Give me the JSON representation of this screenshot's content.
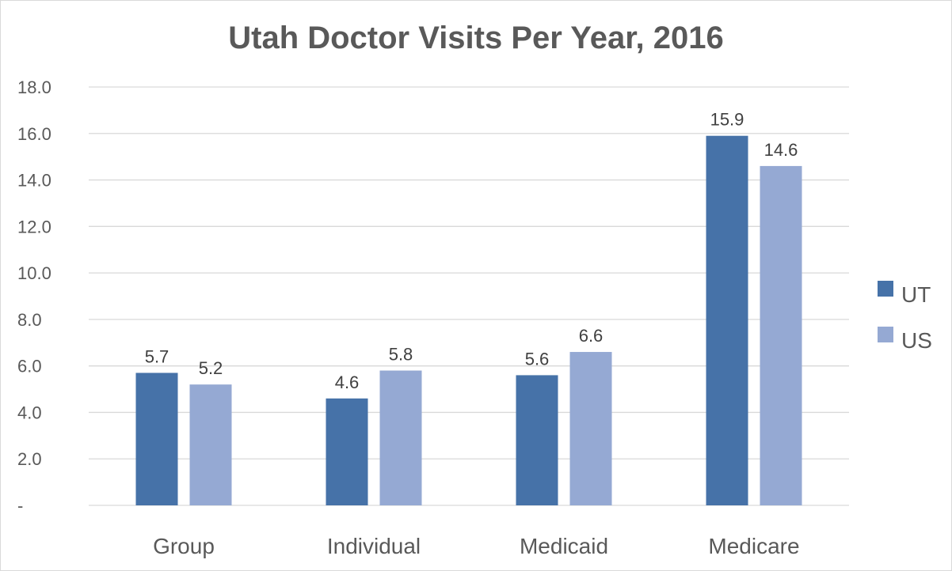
{
  "chart_data": {
    "type": "bar",
    "title": "Utah Doctor Visits Per Year, 2016",
    "categories": [
      "Group",
      "Individual",
      "Medicaid",
      "Medicare"
    ],
    "series": [
      {
        "name": "UT",
        "values": [
          5.7,
          4.6,
          5.6,
          15.9
        ],
        "color": "#4672a8"
      },
      {
        "name": "US",
        "values": [
          5.2,
          5.8,
          6.6,
          14.6
        ],
        "color": "#95a9d3"
      }
    ],
    "data_labels": [
      [
        "5.7",
        "4.6",
        "5.6",
        "15.9"
      ],
      [
        "5.2",
        "5.8",
        "6.6",
        "14.6"
      ]
    ],
    "yticks": [
      0,
      2,
      4,
      6,
      8,
      10,
      12,
      14,
      16,
      18
    ],
    "ytick_labels": [
      "-",
      "2.0",
      "4.0",
      "6.0",
      "8.0",
      "10.0",
      "12.0",
      "14.0",
      "16.0",
      "18.0"
    ],
    "ylim": [
      0,
      18
    ],
    "xlabel": "",
    "ylabel": "",
    "grid": true,
    "legend_position": "right",
    "gridline_color": "#d9d9d9"
  }
}
